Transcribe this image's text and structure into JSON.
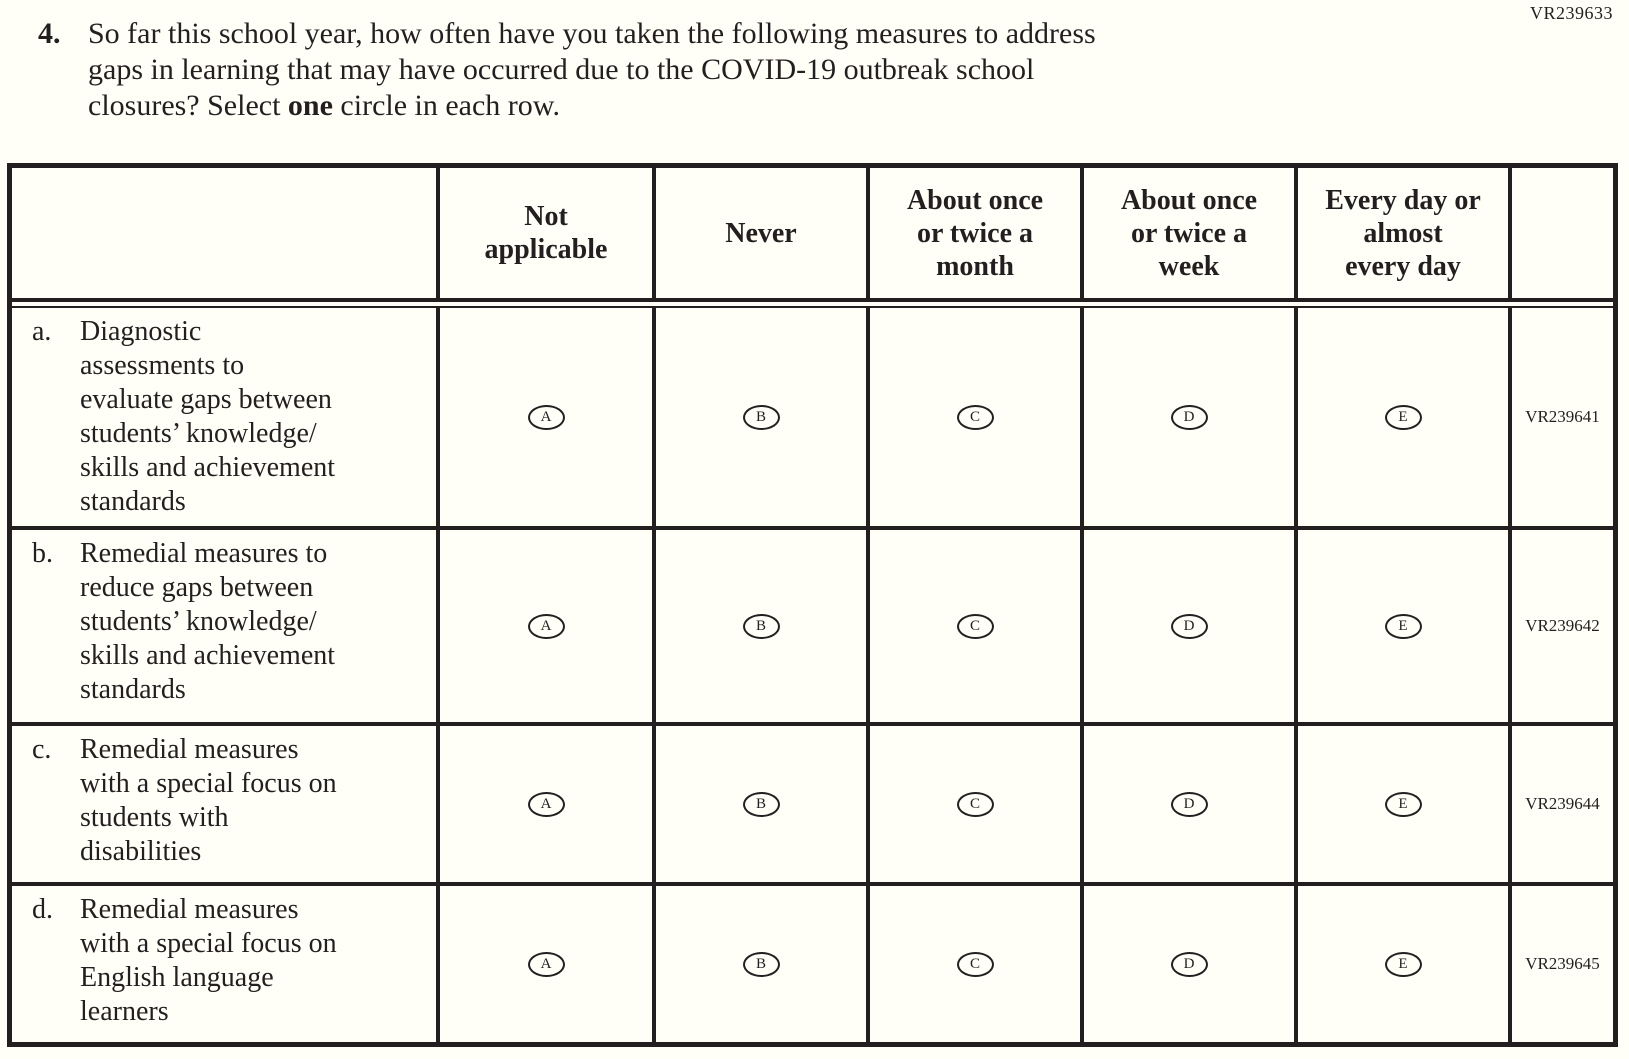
{
  "page": {
    "corner_code": "VR239633"
  },
  "question": {
    "number": "4.",
    "line1": "So far this school year, how often have you taken the following measures to address",
    "line2": "gaps in learning that may have occurred due to the COVID-19 outbreak school",
    "line3_pre": "closures? Select",
    "line3_bold": "one",
    "line3_post": "circle in each row.",
    "ink_color": "#231f20",
    "paper_color": "#fffef7"
  },
  "table": {
    "headers": {
      "not_applicable": "Not\napplicable",
      "never": "Never",
      "once_twice_month": "About once\nor twice a\nmonth",
      "once_twice_week": "About once\nor twice a\nweek",
      "every_day": "Every day or\nalmost\nevery day"
    },
    "options": [
      "A",
      "B",
      "C",
      "D",
      "E"
    ],
    "rows": [
      {
        "letter": "a.",
        "label": "Diagnostic\nassessments to\nevaluate gaps between\nstudents’ knowledge/\nskills and achievement\nstandards",
        "code": "VR239641"
      },
      {
        "letter": "b.",
        "label": "Remedial measures to\nreduce gaps between\nstudents’ knowledge/\nskills and achievement\nstandards",
        "code": "VR239642"
      },
      {
        "letter": "c.",
        "label": "Remedial measures\nwith a special focus on\nstudents with\ndisabilities",
        "code": "VR239644"
      },
      {
        "letter": "d.",
        "label": "Remedial measures\nwith a special focus on\nEnglish language\nlearners",
        "code": "VR239645"
      }
    ]
  }
}
